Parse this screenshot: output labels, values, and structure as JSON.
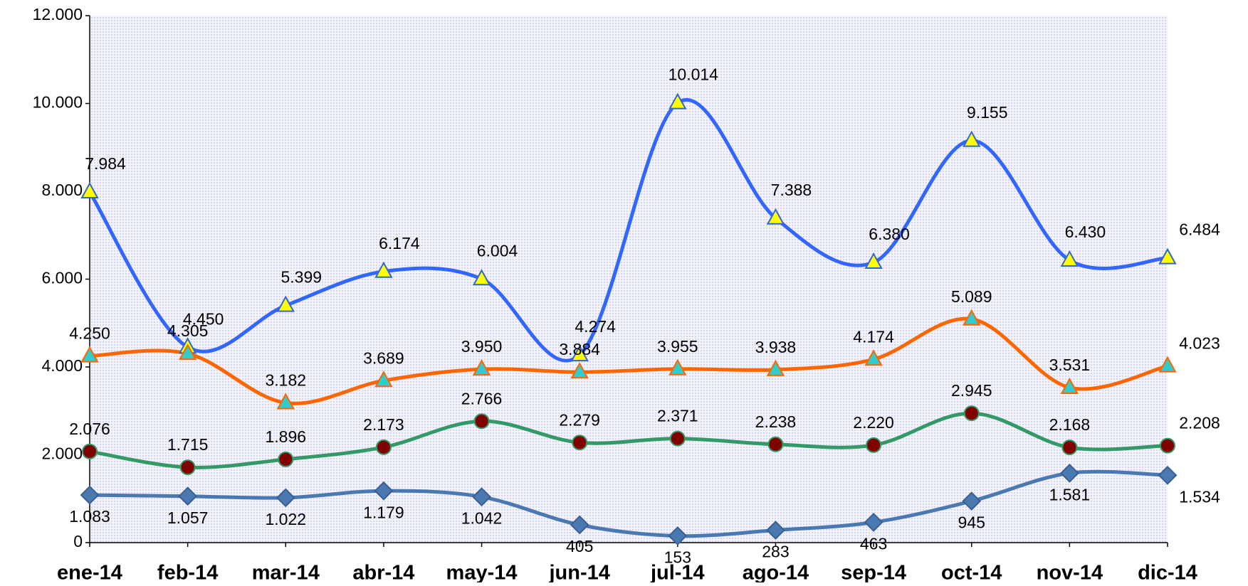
{
  "chart_data": {
    "type": "line",
    "smooth": true,
    "categories": [
      "ene-14",
      "feb-14",
      "mar-14",
      "abr-14",
      "may-14",
      "jun-14",
      "jul-14",
      "ago-14",
      "sep-14",
      "oct-14",
      "nov-14",
      "dic-14"
    ],
    "ylim": [
      0,
      12000
    ],
    "yticks": [
      0,
      {
        "value": 2000,
        "label": "2.000"
      },
      {
        "value": 4000,
        "label": "4.000"
      },
      {
        "value": 6000,
        "label": "6.000"
      },
      {
        "value": 8000,
        "label": "8.000"
      },
      {
        "value": 10000,
        "label": "10.000"
      },
      {
        "value": 12000,
        "label": "12.000"
      }
    ],
    "series": [
      {
        "color": "#3366ff",
        "marker": "triangle",
        "marker_color": "#ffff00",
        "marker_edge": "#3366cc",
        "values": [
          7984,
          4450,
          5399,
          6174,
          6004,
          4274,
          10014,
          7388,
          6380,
          9155,
          6430,
          6484
        ],
        "value_labels": [
          "7.984",
          "4.450",
          "5.399",
          "6.174",
          "6.004",
          "4.274",
          "10.014",
          "7.388",
          "6.380",
          "9.155",
          "6.430",
          "6.484"
        ]
      },
      {
        "color": "#ff6600",
        "marker": "triangle",
        "marker_color": "#33cccc",
        "marker_edge": "#ff6600",
        "values": [
          4250,
          4305,
          3182,
          3689,
          3950,
          3884,
          3955,
          3938,
          4174,
          5089,
          3531,
          4023
        ],
        "value_labels": [
          "4.250",
          "4.305",
          "3.182",
          "3.689",
          "3.950",
          "3.884",
          "3.955",
          "3.938",
          "4.174",
          "5.089",
          "3.531",
          "4.023"
        ]
      },
      {
        "color": "#339966",
        "marker": "circle",
        "marker_color": "#800000",
        "marker_edge": "#339966",
        "values": [
          2076,
          1715,
          1896,
          2173,
          2766,
          2279,
          2371,
          2238,
          2220,
          2945,
          2168,
          2208
        ],
        "value_labels": [
          "2.076",
          "1.715",
          "1.896",
          "2.173",
          "2.766",
          "2.279",
          "2.371",
          "2.238",
          "2.220",
          "2.945",
          "2.168",
          "2.208"
        ]
      },
      {
        "color": "#4a78b0",
        "marker": "diamond",
        "marker_color": "#4a78b0",
        "marker_edge": "#3a5f8f",
        "values": [
          1083,
          1057,
          1022,
          1179,
          1042,
          405,
          153,
          283,
          463,
          945,
          1581,
          1534
        ],
        "value_labels": [
          "1.083",
          "1.057",
          "1.022",
          "1.179",
          "1.042",
          "405",
          "153",
          "283",
          "463",
          "945",
          "1.581",
          "1.534"
        ]
      }
    ]
  }
}
